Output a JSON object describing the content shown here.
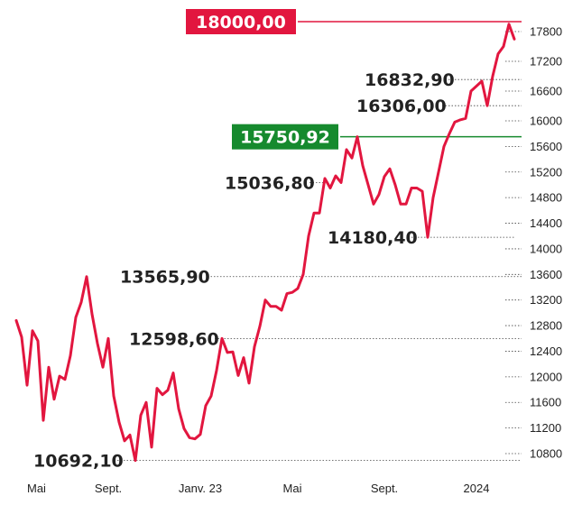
{
  "chart_data": {
    "type": "line",
    "series_color": "#e2163f",
    "ylim": [
      10550,
      18100
    ],
    "y_ticks": [
      10800,
      11200,
      11600,
      12000,
      12400,
      12800,
      13200,
      13600,
      14000,
      14400,
      14800,
      15200,
      15600,
      16000,
      16600,
      17200,
      17800
    ],
    "x_ticks": [
      {
        "label": "Mai",
        "x": 0
      },
      {
        "label": "Sept.",
        "x": 17
      },
      {
        "label": "Janv. 23",
        "x": 34
      },
      {
        "label": "Mai",
        "x": 51
      },
      {
        "label": "Sept.",
        "x": 68
      },
      {
        "label": "2024",
        "x": 85
      }
    ],
    "values": [
      12880,
      12620,
      11870,
      12720,
      12560,
      11320,
      12150,
      11650,
      12010,
      11960,
      12330,
      12930,
      13165,
      13565,
      12980,
      12520,
      12150,
      12600,
      11700,
      11290,
      11000,
      11090,
      10692,
      11400,
      11600,
      10900,
      11820,
      11720,
      11790,
      12060,
      11500,
      11190,
      11050,
      11030,
      11100,
      11550,
      11700,
      12100,
      12600,
      12380,
      12390,
      12020,
      12300,
      11900,
      12470,
      12790,
      13200,
      13100,
      13100,
      13040,
      13300,
      13320,
      13380,
      13600,
      14200,
      14560,
      14560,
      15100,
      14950,
      15140,
      15036,
      15550,
      15420,
      15750,
      15300,
      15000,
      14700,
      14850,
      15130,
      15250,
      15000,
      14700,
      14700,
      14950,
      14950,
      14900,
      14180,
      14800,
      15200,
      15600,
      15800,
      15980,
      16020,
      16050,
      16600,
      16700,
      16800,
      16306,
      16900,
      17350,
      17500,
      17950,
      17650
    ],
    "annotations": [
      {
        "label": "18000,00",
        "value": 18000.0,
        "style": "red-box"
      },
      {
        "label": "16832,90",
        "value": 16832.9,
        "style": "text"
      },
      {
        "label": "16306,00",
        "value": 16306.0,
        "style": "text"
      },
      {
        "label": "15750,92",
        "value": 15750.92,
        "style": "green-box"
      },
      {
        "label": "15036,80",
        "value": 15036.8,
        "style": "text"
      },
      {
        "label": "14180,40",
        "value": 14180.4,
        "style": "text"
      },
      {
        "label": "13565,90",
        "value": 13565.9,
        "style": "text"
      },
      {
        "label": "12598,60",
        "value": 12598.6,
        "style": "text"
      },
      {
        "label": "10692,10",
        "value": 10692.1,
        "style": "text"
      }
    ],
    "colors": {
      "red_box": "#e2163f",
      "green_box": "#168a2e",
      "text": "#222222",
      "ref_line_red": "#e2163f",
      "ref_line_green": "#168a2e"
    }
  }
}
